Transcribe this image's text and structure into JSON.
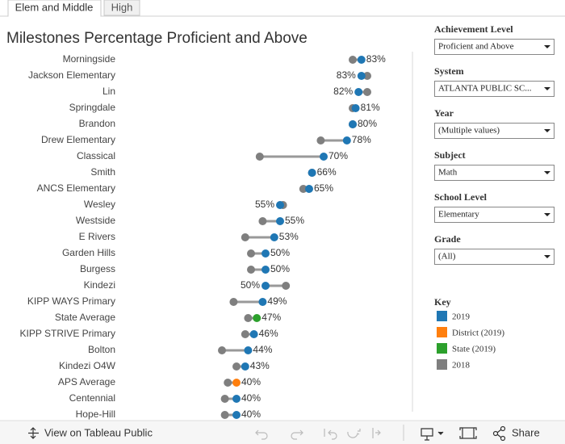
{
  "tabs": [
    "Elem and Middle",
    "High"
  ],
  "chart_data": {
    "type": "dumbbell",
    "title": "Milestones Percentage Proficient and Above",
    "categories": [
      "Morningside",
      "Jackson Elementary",
      "Lin",
      "Springdale",
      "Brandon",
      "Drew Elementary",
      "Classical",
      "Smith",
      "ANCS Elementary",
      "Wesley",
      "Westside",
      "E Rivers",
      "Garden Hills",
      "Burgess",
      "Kindezi",
      "KIPP WAYS Primary",
      "State Average",
      "KIPP STRIVE Primary",
      "Bolton",
      "Kindezi O4W",
      "APS Average",
      "Centennial",
      "Hope-Hill"
    ],
    "xlim": [
      0,
      100
    ],
    "legend_title": "Key",
    "series": [
      {
        "name": "2019",
        "color": "#1f77b4",
        "values": [
          83,
          83,
          82,
          81,
          80,
          78,
          70,
          66,
          65,
          55,
          55,
          53,
          50,
          50,
          50,
          49,
          null,
          46,
          44,
          43,
          null,
          40,
          40
        ],
        "value_labels": [
          "83%",
          "83%",
          "82%",
          "81%",
          "80%",
          "78%",
          "70%",
          "66%",
          "65%",
          "55%",
          "55%",
          "53%",
          "50%",
          "50%",
          "50%",
          "49%",
          null,
          "46%",
          "44%",
          "43%",
          null,
          "40%",
          "40%"
        ]
      },
      {
        "name": "District (2019)",
        "color": "#ff7f0e",
        "values": [
          null,
          null,
          null,
          null,
          null,
          null,
          null,
          null,
          null,
          null,
          null,
          null,
          null,
          null,
          null,
          null,
          null,
          null,
          null,
          null,
          40,
          null,
          null
        ],
        "value_labels": [
          null,
          null,
          null,
          null,
          null,
          null,
          null,
          null,
          null,
          null,
          null,
          null,
          null,
          null,
          null,
          null,
          null,
          null,
          null,
          null,
          "40%",
          null,
          null
        ]
      },
      {
        "name": "State (2019)",
        "color": "#2ca02c",
        "values": [
          null,
          null,
          null,
          null,
          null,
          null,
          null,
          null,
          null,
          null,
          null,
          null,
          null,
          null,
          null,
          null,
          47,
          null,
          null,
          null,
          null,
          null,
          null
        ],
        "value_labels": [
          null,
          null,
          null,
          null,
          null,
          null,
          null,
          null,
          null,
          null,
          null,
          null,
          null,
          null,
          null,
          null,
          "47%",
          null,
          null,
          null,
          null,
          null,
          null
        ]
      },
      {
        "name": "2018",
        "color": "#7f7f7f",
        "values": [
          80,
          85,
          85,
          80,
          80,
          69,
          48,
          66,
          63,
          56,
          49,
          43,
          45,
          45,
          57,
          39,
          44,
          43,
          35,
          40,
          37,
          36,
          36
        ]
      }
    ]
  },
  "filters": [
    {
      "label": "Achievement Level",
      "value": "Proficient and Above"
    },
    {
      "label": "System",
      "value": "ATLANTA PUBLIC SC..."
    },
    {
      "label": "Year",
      "value": "(Multiple values)"
    },
    {
      "label": "Subject",
      "value": "Math"
    },
    {
      "label": "School Level",
      "value": "Elementary"
    },
    {
      "label": "Grade",
      "value": "(All)"
    }
  ],
  "toolbar": {
    "view": "View on Tableau Public",
    "share": "Share"
  }
}
